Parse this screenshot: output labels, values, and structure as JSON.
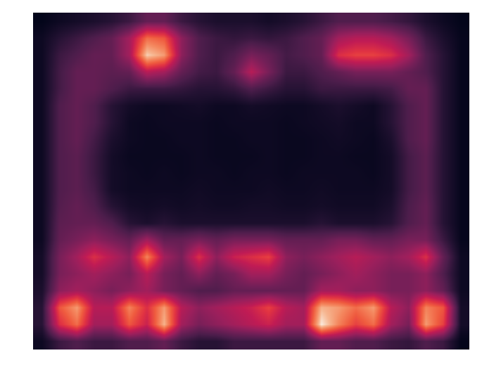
{
  "chart_data": {
    "type": "heatmap",
    "tick_labels": false,
    "cells": [
      [
        0.05,
        0.08,
        0.1,
        0.12,
        0.15,
        0.2,
        0.3,
        0.3,
        0.2,
        0.15,
        0.12,
        0.12,
        0.12,
        0.1,
        0.12,
        0.15,
        0.2,
        0.25,
        0.25,
        0.25,
        0.22,
        0.18,
        0.12,
        0.08,
        0.05
      ],
      [
        0.08,
        0.15,
        0.2,
        0.25,
        0.3,
        0.45,
        0.75,
        0.7,
        0.4,
        0.25,
        0.2,
        0.18,
        0.2,
        0.18,
        0.2,
        0.25,
        0.3,
        0.45,
        0.5,
        0.5,
        0.45,
        0.35,
        0.2,
        0.12,
        0.06
      ],
      [
        0.08,
        0.2,
        0.25,
        0.3,
        0.3,
        0.45,
        0.95,
        0.85,
        0.4,
        0.25,
        0.2,
        0.25,
        0.35,
        0.3,
        0.22,
        0.25,
        0.3,
        0.6,
        0.65,
        0.65,
        0.6,
        0.45,
        0.25,
        0.15,
        0.06
      ],
      [
        0.08,
        0.22,
        0.3,
        0.3,
        0.28,
        0.3,
        0.5,
        0.45,
        0.3,
        0.22,
        0.2,
        0.3,
        0.5,
        0.35,
        0.2,
        0.2,
        0.25,
        0.3,
        0.35,
        0.35,
        0.35,
        0.3,
        0.25,
        0.15,
        0.06
      ],
      [
        0.08,
        0.22,
        0.3,
        0.3,
        0.25,
        0.2,
        0.2,
        0.2,
        0.18,
        0.15,
        0.15,
        0.18,
        0.25,
        0.2,
        0.15,
        0.15,
        0.2,
        0.2,
        0.2,
        0.2,
        0.22,
        0.3,
        0.3,
        0.15,
        0.06
      ],
      [
        0.08,
        0.25,
        0.3,
        0.25,
        0.15,
        0.1,
        0.08,
        0.08,
        0.09,
        0.1,
        0.08,
        0.08,
        0.1,
        0.09,
        0.08,
        0.08,
        0.1,
        0.12,
        0.1,
        0.08,
        0.15,
        0.25,
        0.3,
        0.15,
        0.06
      ],
      [
        0.08,
        0.25,
        0.3,
        0.25,
        0.15,
        0.08,
        0.07,
        0.08,
        0.08,
        0.08,
        0.07,
        0.08,
        0.08,
        0.08,
        0.07,
        0.08,
        0.09,
        0.1,
        0.08,
        0.08,
        0.15,
        0.25,
        0.3,
        0.15,
        0.06
      ],
      [
        0.08,
        0.25,
        0.3,
        0.22,
        0.12,
        0.08,
        0.07,
        0.07,
        0.08,
        0.08,
        0.07,
        0.07,
        0.08,
        0.08,
        0.07,
        0.07,
        0.08,
        0.09,
        0.08,
        0.07,
        0.12,
        0.25,
        0.3,
        0.15,
        0.06
      ],
      [
        0.08,
        0.25,
        0.28,
        0.2,
        0.1,
        0.07,
        0.07,
        0.07,
        0.07,
        0.08,
        0.07,
        0.07,
        0.07,
        0.08,
        0.07,
        0.07,
        0.08,
        0.08,
        0.07,
        0.07,
        0.1,
        0.22,
        0.28,
        0.15,
        0.06
      ],
      [
        0.08,
        0.25,
        0.28,
        0.2,
        0.1,
        0.08,
        0.07,
        0.08,
        0.07,
        0.08,
        0.08,
        0.07,
        0.08,
        0.08,
        0.07,
        0.08,
        0.08,
        0.08,
        0.08,
        0.07,
        0.1,
        0.22,
        0.28,
        0.15,
        0.06
      ],
      [
        0.08,
        0.25,
        0.28,
        0.22,
        0.1,
        0.08,
        0.08,
        0.08,
        0.08,
        0.09,
        0.08,
        0.08,
        0.08,
        0.09,
        0.08,
        0.08,
        0.09,
        0.08,
        0.08,
        0.08,
        0.1,
        0.22,
        0.28,
        0.15,
        0.06
      ],
      [
        0.08,
        0.26,
        0.3,
        0.25,
        0.15,
        0.1,
        0.09,
        0.1,
        0.09,
        0.1,
        0.09,
        0.09,
        0.1,
        0.1,
        0.09,
        0.09,
        0.1,
        0.09,
        0.09,
        0.09,
        0.12,
        0.24,
        0.3,
        0.15,
        0.06
      ],
      [
        0.08,
        0.28,
        0.3,
        0.3,
        0.25,
        0.15,
        0.12,
        0.15,
        0.12,
        0.12,
        0.12,
        0.12,
        0.12,
        0.12,
        0.12,
        0.12,
        0.15,
        0.12,
        0.12,
        0.12,
        0.15,
        0.25,
        0.3,
        0.15,
        0.06
      ],
      [
        0.08,
        0.3,
        0.35,
        0.4,
        0.35,
        0.3,
        0.45,
        0.3,
        0.3,
        0.35,
        0.3,
        0.35,
        0.35,
        0.35,
        0.3,
        0.3,
        0.3,
        0.35,
        0.35,
        0.3,
        0.3,
        0.35,
        0.35,
        0.2,
        0.06
      ],
      [
        0.1,
        0.35,
        0.45,
        0.6,
        0.5,
        0.4,
        0.8,
        0.45,
        0.35,
        0.6,
        0.4,
        0.55,
        0.6,
        0.65,
        0.4,
        0.35,
        0.4,
        0.45,
        0.5,
        0.45,
        0.4,
        0.45,
        0.6,
        0.3,
        0.08
      ],
      [
        0.1,
        0.35,
        0.4,
        0.45,
        0.4,
        0.35,
        0.5,
        0.35,
        0.3,
        0.4,
        0.3,
        0.35,
        0.45,
        0.45,
        0.35,
        0.3,
        0.35,
        0.4,
        0.45,
        0.4,
        0.35,
        0.35,
        0.4,
        0.25,
        0.08
      ],
      [
        0.12,
        0.4,
        0.45,
        0.4,
        0.35,
        0.4,
        0.45,
        0.35,
        0.3,
        0.25,
        0.25,
        0.3,
        0.3,
        0.3,
        0.3,
        0.3,
        0.45,
        0.45,
        0.4,
        0.4,
        0.35,
        0.35,
        0.4,
        0.3,
        0.08
      ],
      [
        0.15,
        0.7,
        0.85,
        0.5,
        0.5,
        0.8,
        0.6,
        0.85,
        0.5,
        0.4,
        0.45,
        0.5,
        0.55,
        0.65,
        0.5,
        0.45,
        0.9,
        0.85,
        0.75,
        0.85,
        0.5,
        0.4,
        0.8,
        0.7,
        0.1
      ],
      [
        0.15,
        0.6,
        0.75,
        0.45,
        0.45,
        0.7,
        0.55,
        0.9,
        0.45,
        0.35,
        0.4,
        0.45,
        0.5,
        0.55,
        0.45,
        0.45,
        1.0,
        0.8,
        0.65,
        0.75,
        0.45,
        0.35,
        0.85,
        0.65,
        0.1
      ],
      [
        0.08,
        0.2,
        0.25,
        0.2,
        0.2,
        0.25,
        0.25,
        0.3,
        0.2,
        0.15,
        0.15,
        0.2,
        0.2,
        0.2,
        0.2,
        0.2,
        0.3,
        0.3,
        0.25,
        0.25,
        0.2,
        0.18,
        0.25,
        0.2,
        0.05
      ]
    ]
  }
}
